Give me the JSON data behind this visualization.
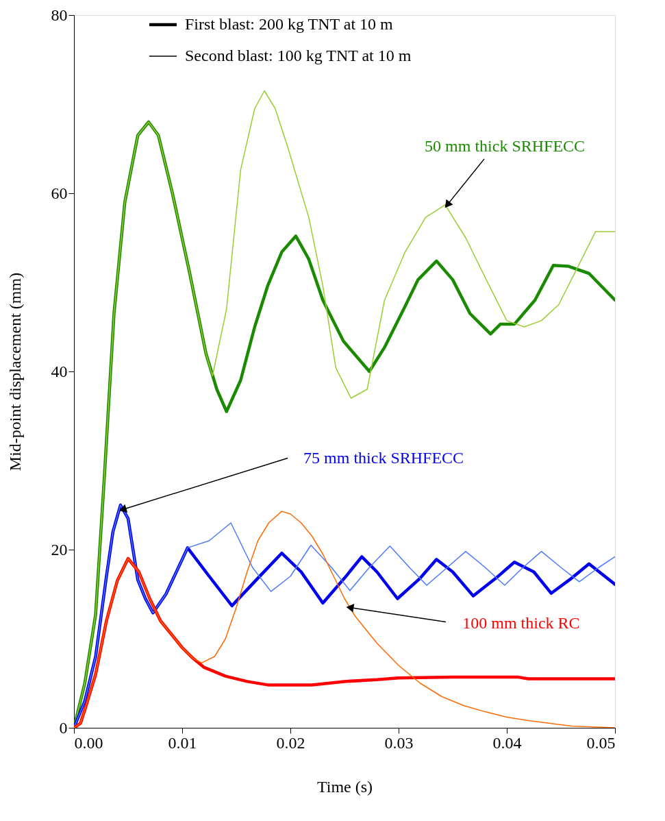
{
  "chart_data": {
    "type": "line",
    "xlabel": "Time (s)",
    "ylabel": "Mid-point displacement (mm)",
    "xlim": [
      0,
      0.05
    ],
    "ylim": [
      0,
      80
    ],
    "xticks": [
      {
        "value": 0,
        "label": "0.00"
      },
      {
        "value": 0.01,
        "label": "0.01"
      },
      {
        "value": 0.02,
        "label": "0.02"
      },
      {
        "value": 0.03,
        "label": "0.03"
      },
      {
        "value": 0.04,
        "label": "0.04"
      },
      {
        "value": 0.05,
        "label": "0.05"
      }
    ],
    "yticks": [
      0,
      20,
      40,
      60,
      80
    ],
    "grid": false,
    "marker": "none",
    "line_style": "solid",
    "series": [
      {
        "color": "#1a8a00",
        "x": [
          0,
          0.001,
          0.002,
          0.0028,
          0.0037,
          0.0047,
          0.0059,
          0.0069,
          0.0078,
          0.0091,
          0.0107,
          0.0122,
          0.0132,
          0.0141,
          0.0154,
          0.0167,
          0.0179,
          0.0192,
          0.0205,
          0.0217,
          0.023,
          0.0249,
          0.0273,
          0.0287,
          0.0306,
          0.0318,
          0.0335,
          0.035,
          0.0366,
          0.0385,
          0.0394,
          0.0407,
          0.0426,
          0.0443,
          0.0457,
          0.0476,
          0.05
        ],
        "values": [
          0,
          5,
          12.7,
          28,
          46.5,
          59,
          66.5,
          68,
          66.5,
          60,
          51,
          42,
          38,
          35.5,
          39,
          45,
          49.6,
          53.4,
          55.2,
          52.6,
          48,
          43.4,
          40,
          42.7,
          47.3,
          50.3,
          52.4,
          50.3,
          46.5,
          44.2,
          45.3,
          45.3,
          48,
          51.9,
          51.8,
          51,
          48
        ]
      },
      {
        "color": "#9acd32",
        "x": [
          0,
          0.001,
          0.002,
          0.0028,
          0.0037,
          0.0047,
          0.0059,
          0.0069,
          0.0078,
          0.0091,
          0.0107,
          0.0122,
          0.0128,
          0.0141,
          0.0154,
          0.0167,
          0.0176,
          0.0186,
          0.0198,
          0.0217,
          0.023,
          0.0242,
          0.0256,
          0.0271,
          0.0287,
          0.0306,
          0.0325,
          0.0343,
          0.0362,
          0.0381,
          0.04,
          0.0416,
          0.0432,
          0.0448,
          0.0463,
          0.0482,
          0.05
        ],
        "values": [
          0,
          5,
          12.7,
          28,
          46.5,
          59,
          66.5,
          68,
          66.5,
          60,
          51,
          42,
          39.5,
          47,
          62.6,
          69.5,
          71.5,
          69.5,
          65,
          57.3,
          49.6,
          40.4,
          37,
          38,
          48,
          53.4,
          57.3,
          58.7,
          55,
          50.3,
          45.7,
          45,
          45.7,
          47.5,
          51.1,
          55.7,
          55.7
        ]
      },
      {
        "color": "#0000ee",
        "x": [
          0,
          0.001,
          0.002,
          0.003,
          0.0036,
          0.0043,
          0.005,
          0.0059,
          0.0066,
          0.0073,
          0.0085,
          0.0105,
          0.0125,
          0.0146,
          0.017,
          0.0192,
          0.021,
          0.023,
          0.025,
          0.0266,
          0.028,
          0.0299,
          0.032,
          0.0335,
          0.035,
          0.0369,
          0.039,
          0.0407,
          0.0425,
          0.0441,
          0.046,
          0.0476,
          0.05
        ],
        "values": [
          0,
          3,
          8,
          17,
          22,
          25,
          23.5,
          16.6,
          14.5,
          12.9,
          15,
          20.2,
          17,
          13.7,
          16.8,
          19.6,
          17.5,
          14,
          16.8,
          19.2,
          17.5,
          14.5,
          16.8,
          18.9,
          17.5,
          14.8,
          16.8,
          18.6,
          17.5,
          15.1,
          16.8,
          18.4,
          16.1
        ]
      },
      {
        "color": "#4d79ff",
        "x": [
          0,
          0.001,
          0.002,
          0.003,
          0.0036,
          0.0043,
          0.005,
          0.0059,
          0.0066,
          0.0073,
          0.0085,
          0.0105,
          0.0125,
          0.0145,
          0.0165,
          0.0182,
          0.02,
          0.0219,
          0.0238,
          0.0255,
          0.0273,
          0.0292,
          0.031,
          0.0326,
          0.0345,
          0.0362,
          0.038,
          0.0398,
          0.0415,
          0.0432,
          0.045,
          0.0467,
          0.0485,
          0.05
        ],
        "values": [
          0,
          3,
          8,
          17,
          22,
          25,
          23.5,
          16.6,
          14.5,
          12.9,
          15,
          20.2,
          21,
          23,
          18,
          15.3,
          17,
          20.5,
          18,
          15.4,
          18,
          20.4,
          18,
          16,
          18,
          19.8,
          18,
          16,
          18,
          19.8,
          18,
          16.4,
          18,
          19.2
        ]
      },
      {
        "color": "#ff0000",
        "x": [
          0,
          0.0006,
          0.001,
          0.002,
          0.003,
          0.004,
          0.005,
          0.006,
          0.007,
          0.008,
          0.009,
          0.01,
          0.011,
          0.012,
          0.013,
          0.014,
          0.016,
          0.018,
          0.022,
          0.025,
          0.028,
          0.03,
          0.035,
          0.041,
          0.042,
          0.05
        ],
        "values": [
          0,
          0.5,
          2,
          6,
          12,
          16.5,
          19,
          17.5,
          14.5,
          12,
          10.5,
          9,
          7.8,
          6.8,
          6.3,
          5.8,
          5.2,
          4.8,
          4.8,
          5.2,
          5.4,
          5.6,
          5.7,
          5.7,
          5.5,
          5.5
        ]
      },
      {
        "color": "#ff6a00",
        "x": [
          0,
          0.0006,
          0.001,
          0.002,
          0.003,
          0.004,
          0.005,
          0.006,
          0.007,
          0.008,
          0.009,
          0.01,
          0.011,
          0.0118,
          0.013,
          0.014,
          0.015,
          0.016,
          0.017,
          0.018,
          0.0192,
          0.02,
          0.021,
          0.022,
          0.023,
          0.024,
          0.025,
          0.026,
          0.028,
          0.03,
          0.032,
          0.034,
          0.036,
          0.038,
          0.04,
          0.042,
          0.044,
          0.046,
          0.048,
          0.05
        ],
        "values": [
          0,
          0.5,
          2,
          6,
          12,
          16.5,
          19,
          17.5,
          14.5,
          12,
          10.5,
          9,
          7.8,
          7.3,
          8,
          10,
          13.5,
          17.5,
          21,
          23,
          24.3,
          24,
          23,
          21.5,
          19.5,
          17,
          14.5,
          12.5,
          9.5,
          7,
          5,
          3.5,
          2.5,
          1.8,
          1.2,
          0.8,
          0.5,
          0.2,
          0.1,
          0
        ]
      }
    ],
    "annotations": [
      "First blast: 200 kg TNT at 10 m",
      "Second blast: 100 kg TNT at 10 m",
      {
        "text": "50 mm thick SRHFECC",
        "x": 0.0345,
        "y": 58.7
      },
      {
        "text": "75 mm thick SRHFECC",
        "x": 0.0045,
        "y": 24.5
      },
      {
        "text": "100 mm thick RC",
        "x": 0.0255,
        "y": 13.5
      }
    ]
  }
}
